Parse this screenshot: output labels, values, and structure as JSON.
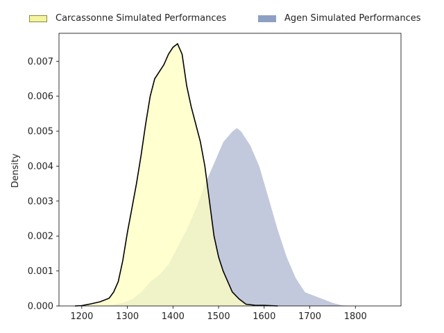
{
  "chart_data": {
    "type": "area",
    "xlabel": "",
    "ylabel": "Density",
    "xlim": [
      1150,
      1900
    ],
    "ylim": [
      0,
      0.0078
    ],
    "xticks": [
      "1200",
      "1300",
      "1400",
      "1500",
      "1600",
      "1700",
      "1800"
    ],
    "yticks": [
      "0.000",
      "0.001",
      "0.002",
      "0.003",
      "0.004",
      "0.005",
      "0.006",
      "0.007"
    ],
    "legend_position": "top",
    "series": [
      {
        "name": "Carcassonne Simulated Performances",
        "fill": "#ffffc0",
        "line": "#000000",
        "swatch": "#f5f5a0",
        "points": [
          [
            1185,
            0.0
          ],
          [
            1200,
            1e-05
          ],
          [
            1220,
            6e-05
          ],
          [
            1240,
            0.00012
          ],
          [
            1260,
            0.00022
          ],
          [
            1270,
            0.0004
          ],
          [
            1280,
            0.0007
          ],
          [
            1290,
            0.0013
          ],
          [
            1300,
            0.0021
          ],
          [
            1310,
            0.0028
          ],
          [
            1320,
            0.0035
          ],
          [
            1330,
            0.0043
          ],
          [
            1340,
            0.0052
          ],
          [
            1350,
            0.006
          ],
          [
            1360,
            0.0065
          ],
          [
            1370,
            0.0067
          ],
          [
            1380,
            0.0069
          ],
          [
            1390,
            0.0072
          ],
          [
            1400,
            0.0074
          ],
          [
            1410,
            0.0075
          ],
          [
            1420,
            0.0072
          ],
          [
            1430,
            0.0063
          ],
          [
            1440,
            0.0057
          ],
          [
            1450,
            0.0052
          ],
          [
            1460,
            0.0047
          ],
          [
            1470,
            0.004
          ],
          [
            1480,
            0.003
          ],
          [
            1490,
            0.002
          ],
          [
            1500,
            0.0014
          ],
          [
            1510,
            0.001
          ],
          [
            1520,
            0.0007
          ],
          [
            1530,
            0.0004
          ],
          [
            1545,
            0.0002
          ],
          [
            1560,
            5e-05
          ],
          [
            1580,
            2e-05
          ],
          [
            1600,
            1.5e-05
          ],
          [
            1630,
            0.0
          ]
        ]
      },
      {
        "name": "Agen Simulated Performances",
        "fill": "#c3c9dc",
        "line": "#ffffff",
        "swatch": "#8e9fc4",
        "points": [
          [
            1205,
            0.0
          ],
          [
            1250,
            2e-05
          ],
          [
            1270,
            5e-05
          ],
          [
            1290,
            0.0001
          ],
          [
            1310,
            0.0002
          ],
          [
            1330,
            0.0004
          ],
          [
            1350,
            0.0007
          ],
          [
            1370,
            0.0009
          ],
          [
            1390,
            0.0012
          ],
          [
            1410,
            0.0017
          ],
          [
            1430,
            0.0022
          ],
          [
            1450,
            0.0028
          ],
          [
            1470,
            0.0035
          ],
          [
            1490,
            0.0041
          ],
          [
            1510,
            0.0047
          ],
          [
            1530,
            0.005
          ],
          [
            1540,
            0.0051
          ],
          [
            1550,
            0.005
          ],
          [
            1570,
            0.0046
          ],
          [
            1590,
            0.004
          ],
          [
            1610,
            0.0031
          ],
          [
            1630,
            0.0022
          ],
          [
            1650,
            0.0014
          ],
          [
            1670,
            0.0008
          ],
          [
            1690,
            0.0004
          ],
          [
            1710,
            0.0003
          ],
          [
            1730,
            0.0002
          ],
          [
            1750,
            0.0001
          ],
          [
            1770,
            3e-05
          ],
          [
            1800,
            0.0
          ]
        ]
      }
    ]
  }
}
